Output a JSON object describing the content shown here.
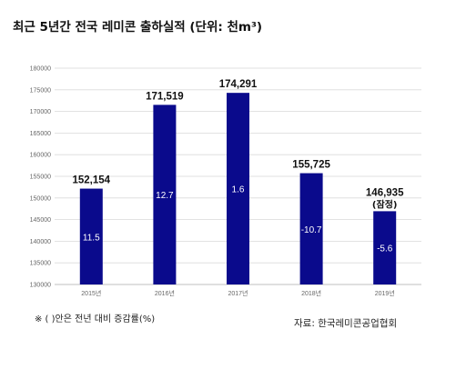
{
  "title": "최근 5년간 전국 레미콘 출하실적 (단위: 천m³)",
  "footnote": "※ (   )안은 전년 대비 증감률(%)",
  "source": "자료: 한국레미콘공업협회",
  "colors": {
    "bar": "#0a0a8c",
    "grid": "#d9d9d9",
    "axis": "#bfbfbf"
  },
  "chart_data": {
    "type": "bar",
    "categories": [
      "2015년",
      "2016년",
      "2017년",
      "2018년",
      "2019년"
    ],
    "values": [
      152154,
      171519,
      174291,
      155725,
      146935
    ],
    "value_labels": [
      "152,154",
      "171,519",
      "174,291",
      "155,725",
      "146,935"
    ],
    "value_sublabels": [
      "",
      "",
      "",
      "",
      "(잠정)"
    ],
    "change_labels": [
      "11.5",
      "12.7",
      "1.6",
      "-10.7",
      "-5.6"
    ],
    "yticks": [
      "130000",
      "135000",
      "140000",
      "145000",
      "150000",
      "155000",
      "160000",
      "165000",
      "170000",
      "175000",
      "180000"
    ],
    "ylim": [
      130000,
      180000
    ],
    "grid": true,
    "legend": "none"
  }
}
